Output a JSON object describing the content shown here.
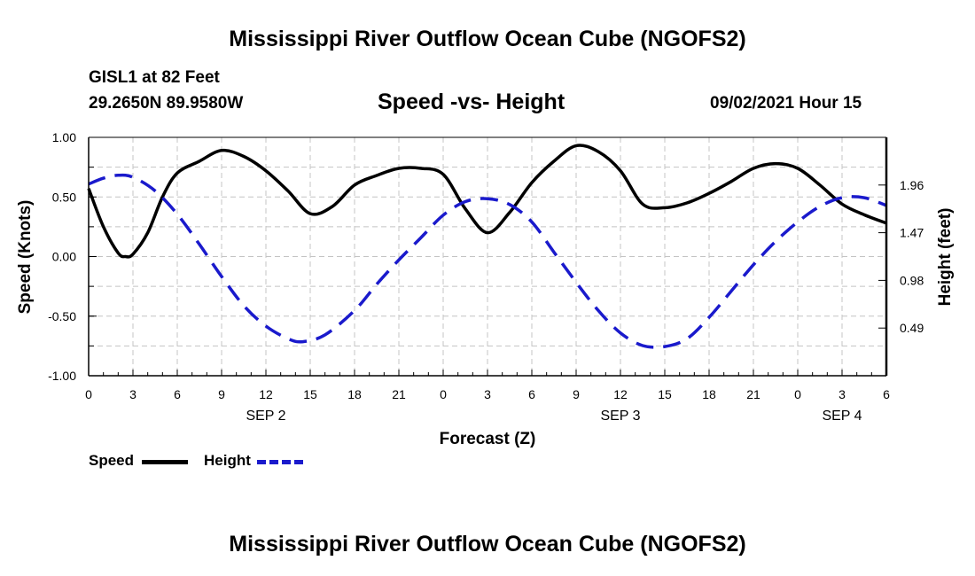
{
  "header": {
    "title_top": "Mississippi River Outflow Ocean Cube (NGOFS2)",
    "title_bottom": "Mississippi River Outflow Ocean Cube (NGOFS2)",
    "station": "GISL1 at 82 Feet",
    "coords": "29.2650N  89.9580W",
    "subtitle": "Speed -vs- Height",
    "datetime": "09/02/2021 Hour 15"
  },
  "chart_data": {
    "type": "line",
    "title": "Speed -vs- Height",
    "xlabel": "Forecast (Z)",
    "ylabel": "Speed (Knots)",
    "y2label": "Height (feet)",
    "xlim": [
      0,
      54
    ],
    "ylim": [
      -1.0,
      1.0
    ],
    "y2lim": [
      0.0,
      2.45
    ],
    "grid": true,
    "x_tick_values": [
      0,
      3,
      6,
      9,
      12,
      15,
      18,
      21,
      24,
      27,
      30,
      33,
      36,
      39,
      42,
      45,
      48,
      51,
      54
    ],
    "x_tick_labels": [
      "0",
      "3",
      "6",
      "9",
      "12",
      "15",
      "18",
      "21",
      "0",
      "3",
      "6",
      "9",
      "12",
      "15",
      "18",
      "21",
      "0",
      "3",
      "6"
    ],
    "date_labels": [
      {
        "x": 12,
        "label": "SEP 2"
      },
      {
        "x": 36,
        "label": "SEP 3"
      },
      {
        "x": 51,
        "label": "SEP 4"
      }
    ],
    "y_tick_values": [
      1.0,
      0.5,
      0.0,
      -0.5,
      -1.0
    ],
    "y_tick_labels": [
      "1.00",
      "0.50",
      "0.00",
      "-0.50",
      "-1.00"
    ],
    "y2_tick_values": [
      1.96,
      1.47,
      0.98,
      0.49
    ],
    "y2_tick_labels": [
      "1.96",
      "1.47",
      "0.98",
      "0.49"
    ],
    "series": [
      {
        "name": "Speed",
        "axis": "left",
        "color": "#000000",
        "dash": "solid",
        "x": [
          0,
          1,
          2,
          2.5,
          3,
          4,
          5,
          6,
          7.5,
          9,
          10.5,
          12,
          13.5,
          15,
          16.5,
          18,
          19.5,
          21,
          22.5,
          24,
          25.5,
          27,
          28.5,
          30,
          31.5,
          33,
          34.5,
          36,
          37.5,
          39,
          40.5,
          42,
          43.5,
          45,
          46.5,
          48,
          49.5,
          51,
          52.5,
          54
        ],
        "values": [
          0.57,
          0.25,
          0.03,
          0.0,
          0.02,
          0.2,
          0.5,
          0.7,
          0.8,
          0.89,
          0.84,
          0.72,
          0.55,
          0.36,
          0.42,
          0.6,
          0.68,
          0.74,
          0.74,
          0.69,
          0.4,
          0.2,
          0.37,
          0.62,
          0.8,
          0.93,
          0.88,
          0.72,
          0.44,
          0.41,
          0.45,
          0.53,
          0.63,
          0.74,
          0.78,
          0.74,
          0.6,
          0.44,
          0.35,
          0.28
        ]
      },
      {
        "name": "Height",
        "axis": "right",
        "color": "#1a1acc",
        "dash": "dashed",
        "x": [
          0,
          1,
          2,
          3,
          4.5,
          6,
          7.5,
          9,
          10.5,
          12,
          13.5,
          14.5,
          16,
          18,
          19.5,
          21,
          22.5,
          24,
          25.5,
          27,
          28.5,
          30,
          31.5,
          33,
          34.5,
          36,
          37.5,
          39,
          40.5,
          42,
          43.5,
          45,
          46.5,
          48,
          49.5,
          51,
          52.5,
          54
        ],
        "values": [
          1.97,
          2.03,
          2.06,
          2.04,
          1.9,
          1.66,
          1.35,
          1.02,
          0.72,
          0.51,
          0.38,
          0.35,
          0.42,
          0.67,
          0.94,
          1.19,
          1.42,
          1.65,
          1.79,
          1.82,
          1.76,
          1.58,
          1.27,
          0.96,
          0.67,
          0.44,
          0.31,
          0.3,
          0.38,
          0.6,
          0.87,
          1.14,
          1.38,
          1.58,
          1.74,
          1.83,
          1.83,
          1.75
        ]
      }
    ],
    "legend": {
      "placement": "bottom-left",
      "entries": [
        "Speed",
        "Height"
      ]
    }
  }
}
